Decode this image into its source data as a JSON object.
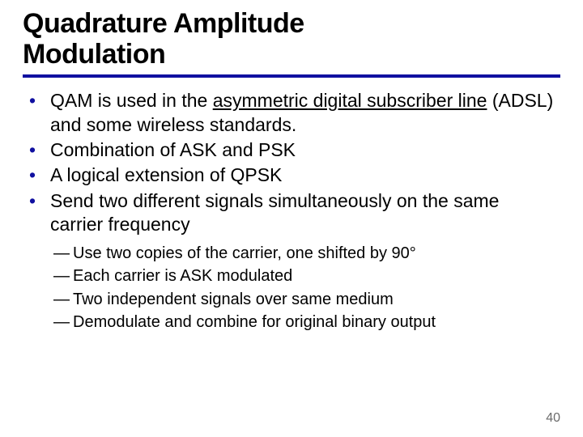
{
  "title_line1": "Quadrature Amplitude",
  "title_line2": "Modulation",
  "rule_color": "#1010a0",
  "bullets": [
    {
      "pre": "QAM is used in the ",
      "u": "asymmetric digital subscriber line",
      "post": " (ADSL) and some wireless standards."
    },
    {
      "pre": "Combination of ASK and PSK",
      "u": "",
      "post": ""
    },
    {
      "pre": "A logical extension of QPSK",
      "u": "",
      "post": ""
    },
    {
      "pre": "Send two different signals simultaneously on the same carrier frequency",
      "u": "",
      "post": ""
    }
  ],
  "dashes": [
    "Use two copies of the carrier, one shifted by 90°",
    "Each carrier is ASK modulated",
    "Two independent signals over same medium",
    "Demodulate and combine for original binary output"
  ],
  "page_number": "40"
}
